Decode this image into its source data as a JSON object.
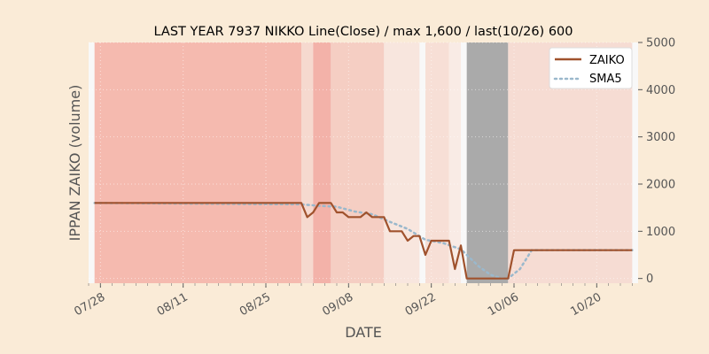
{
  "chart_data": {
    "type": "line",
    "title": "LAST YEAR 7937 NIKKO Line(Close) / max 1,600 / last(10/26) 600",
    "xlabel": "DATE",
    "ylabel": "IPPAN ZAIKO (volume)",
    "ylim": [
      -100,
      5000
    ],
    "yticks": [
      0,
      1000,
      2000,
      3000,
      4000,
      5000
    ],
    "y_axis_side": "right",
    "x_start": "07/26",
    "x_end": "10/27",
    "xticks": [
      "07/28",
      "08/11",
      "08/25",
      "09/08",
      "09/22",
      "10/06",
      "10/20"
    ],
    "grid": true,
    "legend_position": "top-right",
    "colors": {
      "background": "#faebd7",
      "plot_background": "#f8f8f8",
      "zaiko": "#a0522d",
      "sma5": "#9ab8cc",
      "dark_band": "#aaaaaa"
    },
    "background_bands": [
      {
        "from": "07/27",
        "to": "08/31",
        "color": "#f4b6ab",
        "opacity": 0.95
      },
      {
        "from": "08/31",
        "to": "09/02",
        "color": "#f6d3c8",
        "opacity": 0.85
      },
      {
        "from": "09/02",
        "to": "09/05",
        "color": "#f2aea4",
        "opacity": 0.95
      },
      {
        "from": "09/05",
        "to": "09/14",
        "color": "#f4c9bd",
        "opacity": 0.9
      },
      {
        "from": "09/14",
        "to": "09/20",
        "color": "#f7e3da",
        "opacity": 0.9
      },
      {
        "from": "09/21",
        "to": "09/25",
        "color": "#f6dbd1",
        "opacity": 0.9
      },
      {
        "from": "09/25",
        "to": "09/27",
        "color": "#f8e9e2",
        "opacity": 0.9
      },
      {
        "from": "09/28",
        "to": "10/05",
        "color": "#aaaaaa",
        "opacity": 1
      },
      {
        "from": "10/05",
        "to": "10/26",
        "color": "#f5d8ce",
        "opacity": 0.9
      }
    ],
    "series": [
      {
        "name": "ZAIKO",
        "style": "solid",
        "points": [
          [
            "07/27",
            1600
          ],
          [
            "08/31",
            1600
          ],
          [
            "09/01",
            1300
          ],
          [
            "09/02",
            1400
          ],
          [
            "09/03",
            1600
          ],
          [
            "09/04",
            1600
          ],
          [
            "09/05",
            1600
          ],
          [
            "09/06",
            1400
          ],
          [
            "09/07",
            1400
          ],
          [
            "09/08",
            1300
          ],
          [
            "09/09",
            1300
          ],
          [
            "09/10",
            1300
          ],
          [
            "09/11",
            1400
          ],
          [
            "09/12",
            1300
          ],
          [
            "09/13",
            1300
          ],
          [
            "09/14",
            1300
          ],
          [
            "09/15",
            1000
          ],
          [
            "09/16",
            1000
          ],
          [
            "09/17",
            1000
          ],
          [
            "09/18",
            800
          ],
          [
            "09/19",
            900
          ],
          [
            "09/20",
            900
          ],
          [
            "09/21",
            500
          ],
          [
            "09/22",
            800
          ],
          [
            "09/23",
            800
          ],
          [
            "09/24",
            800
          ],
          [
            "09/25",
            800
          ],
          [
            "09/26",
            200
          ],
          [
            "09/27",
            700
          ],
          [
            "09/28",
            0
          ],
          [
            "10/05",
            0
          ],
          [
            "10/06",
            600
          ],
          [
            "10/26",
            600
          ]
        ]
      },
      {
        "name": "SMA5",
        "style": "dotted",
        "points": [
          [
            "07/27",
            1600
          ],
          [
            "08/31",
            1570
          ],
          [
            "09/03",
            1540
          ],
          [
            "09/06",
            1520
          ],
          [
            "09/09",
            1420
          ],
          [
            "09/12",
            1360
          ],
          [
            "09/15",
            1200
          ],
          [
            "09/18",
            1050
          ],
          [
            "09/21",
            820
          ],
          [
            "09/24",
            750
          ],
          [
            "09/27",
            620
          ],
          [
            "09/30",
            260
          ],
          [
            "10/02",
            80
          ],
          [
            "10/04",
            0
          ],
          [
            "10/05",
            0
          ],
          [
            "10/07",
            200
          ],
          [
            "10/09",
            600
          ],
          [
            "10/26",
            600
          ]
        ]
      }
    ]
  }
}
